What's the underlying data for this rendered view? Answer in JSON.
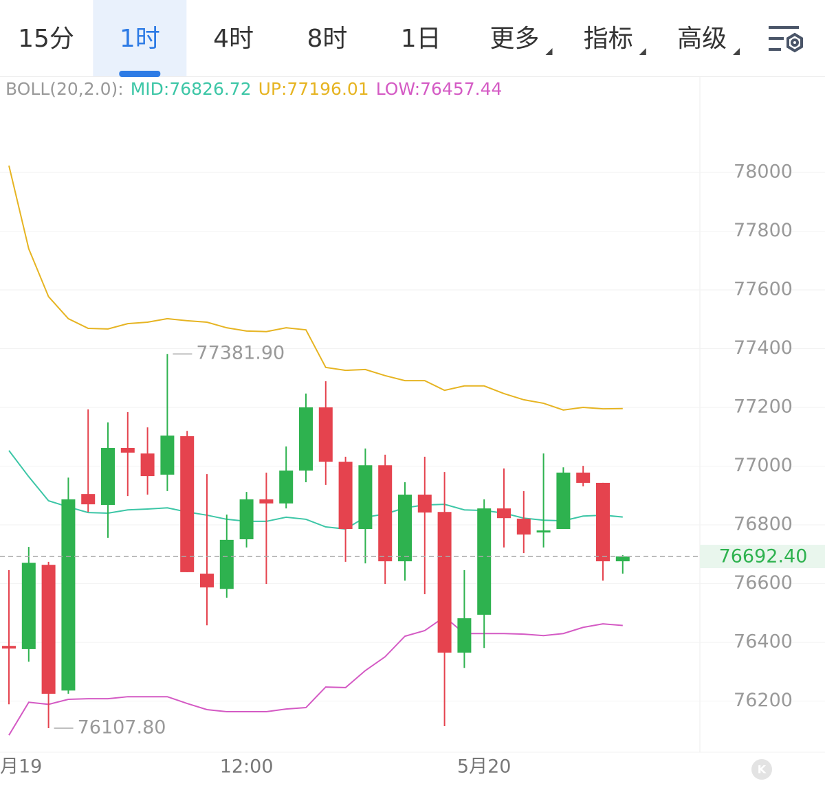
{
  "toolbar": {
    "tabs": [
      {
        "label": "15分",
        "dropdown": false
      },
      {
        "label": "1时",
        "dropdown": false
      },
      {
        "label": "4时",
        "dropdown": false
      },
      {
        "label": "8时",
        "dropdown": false
      },
      {
        "label": "1日",
        "dropdown": false
      },
      {
        "label": "更多",
        "dropdown": true
      },
      {
        "label": "指标",
        "dropdown": true
      },
      {
        "label": "高级",
        "dropdown": true
      }
    ],
    "active": 1
  },
  "chart_data": {
    "type": "candlestick",
    "indicator": "BOLL(20,2.0):",
    "categories": [
      "月19",
      null,
      null,
      null,
      null,
      null,
      null,
      null,
      null,
      null,
      null,
      null,
      "12:00",
      null,
      null,
      null,
      null,
      null,
      null,
      null,
      null,
      null,
      null,
      null,
      "5月20",
      null,
      null,
      null,
      null,
      null,
      null,
      null
    ],
    "open": [
      76388,
      76377,
      76664,
      76236,
      76905,
      76868,
      77062,
      77043,
      76971,
      77102,
      76634,
      76582,
      76751,
      76887,
      76873,
      76985,
      77200,
      77015,
      76786,
      77003,
      76676,
      76903,
      76844,
      76365,
      76494,
      76856,
      76821,
      76774,
      76786,
      76978,
      76943,
      76676
    ],
    "high": [
      76646,
      76725,
      76674,
      76961,
      77193,
      77149,
      77184,
      77132,
      77381.9,
      77120,
      76973,
      76835,
      76912,
      76978,
      77067,
      77247,
      77289,
      77032,
      77060,
      77039,
      76945,
      77032,
      76980,
      76646,
      76887,
      76992,
      76915,
      77043,
      76996,
      77001,
      76943,
      76697
    ],
    "low": [
      76189,
      76334,
      76107.8,
      76225,
      76844,
      76756,
      76898,
      76903,
      76915,
      76639,
      76458,
      76552,
      76723,
      76599,
      76856,
      76945,
      76936,
      76674,
      76669,
      76599,
      76610,
      76564,
      76115,
      76313,
      76381,
      76723,
      76704,
      76723,
      76786,
      76931,
      76610,
      76634
    ],
    "close": [
      76379,
      76671,
      76225,
      76887,
      76870,
      77062,
      77046,
      76966,
      77104,
      76639,
      76587,
      76749,
      76887,
      76873,
      76985,
      77200,
      77015,
      76786,
      77003,
      76676,
      76903,
      76842,
      76365,
      76482,
      76856,
      76823,
      76767,
      76781,
      76978,
      76943,
      76676,
      76692.4
    ],
    "up_color": "#2eb24f",
    "down_color": "#e5434e",
    "lines": [
      {
        "name": "MID:",
        "color": "#3cc6a6",
        "values": [
          77053,
          76964,
          76882,
          76861,
          76842,
          76840,
          76851,
          76854,
          76858,
          76844,
          76833,
          76819,
          76812,
          76812,
          76826,
          76819,
          76793,
          76786,
          76826,
          76837,
          76858,
          76868,
          76870,
          76851,
          76849,
          76840,
          76823,
          76816,
          76814,
          76830,
          76833,
          76826.72
        ]
      },
      {
        "name": "UP:",
        "color": "#e6b422",
        "values": [
          78023,
          77740,
          77577,
          77502,
          77469,
          77467,
          77485,
          77490,
          77502,
          77495,
          77490,
          77471,
          77460,
          77458,
          77471,
          77464,
          77336,
          77326,
          77329,
          77308,
          77291,
          77291,
          77258,
          77273,
          77273,
          77247,
          77226,
          77214,
          77191,
          77200,
          77195,
          77196.01
        ]
      },
      {
        "name": "LOW:",
        "color": "#d45ac4",
        "values": [
          76084,
          76196,
          76189,
          76206,
          76208,
          76208,
          76215,
          76215,
          76215,
          76192,
          76171,
          76164,
          76164,
          76164,
          76173,
          76178,
          76248,
          76246,
          76304,
          76351,
          76421,
          76440,
          76487,
          76430,
          76430,
          76430,
          76428,
          76423,
          76430,
          76451,
          76463,
          76457.44
        ]
      }
    ],
    "ylim": [
      76026,
      78325
    ],
    "yticks": [
      76200,
      76400,
      76600,
      76800,
      77000,
      77200,
      77400,
      77600,
      77800,
      78000
    ],
    "grid": true,
    "current_price": {
      "value": 76692.4,
      "label": "76692.40"
    },
    "annotations": [
      {
        "value": 77381.9,
        "label": "77381.90"
      },
      {
        "value": 76107.8,
        "label": "76107.80"
      }
    ]
  }
}
